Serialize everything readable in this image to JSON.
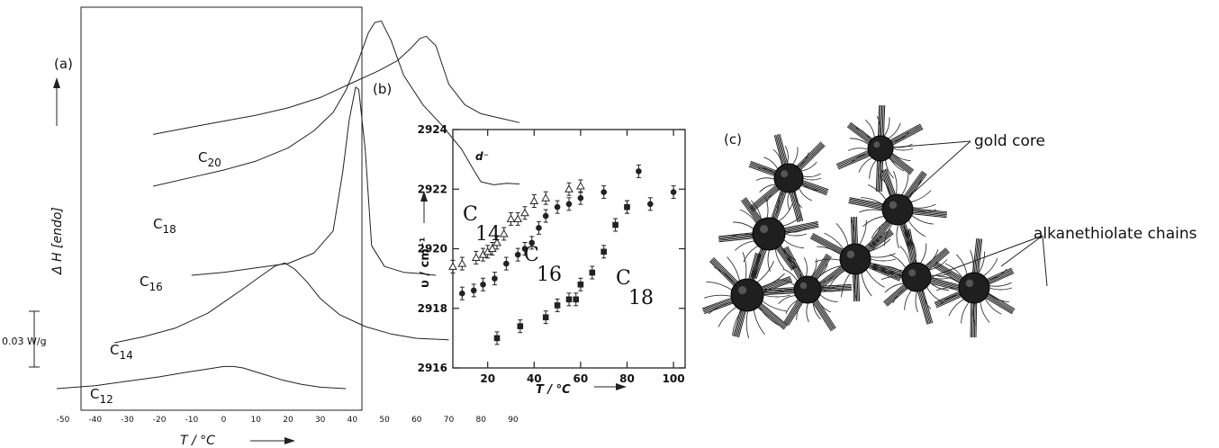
{
  "panels": {
    "a": {
      "label": "(a)"
    },
    "b": {
      "label": "(b)"
    },
    "c": {
      "label": "(c)"
    }
  },
  "chart_data": [
    {
      "type": "line",
      "panel": "(a)",
      "title": "",
      "xlabel": "T / °C",
      "ylabel": "Δ H   [endo]",
      "xlim": [
        -50,
        95
      ],
      "xticks": [
        -50,
        -40,
        -30,
        -20,
        -10,
        0,
        10,
        20,
        30,
        40,
        50,
        60,
        70,
        80,
        90
      ],
      "xtick_labels": [
        "-50",
        "-40",
        "-30",
        "-20",
        "-10",
        "0",
        "10",
        "20",
        "30",
        "40",
        "50",
        "60",
        "70",
        "80",
        "90"
      ],
      "scale_bar": {
        "label": "0.03 W/g",
        "value_w_per_g": 0.03
      },
      "grid": false,
      "series": [
        {
          "name": "C20",
          "label_main": "C",
          "label_sub": "20",
          "x": [
            -22,
            -10,
            0,
            10,
            20,
            30,
            40,
            48,
            54,
            58,
            61,
            63,
            66,
            70,
            75,
            80,
            86,
            92
          ],
          "y": [
            0.13,
            0.14,
            0.148,
            0.156,
            0.166,
            0.18,
            0.2,
            0.216,
            0.23,
            0.246,
            0.26,
            0.263,
            0.25,
            0.198,
            0.17,
            0.158,
            0.152,
            0.146
          ]
        },
        {
          "name": "C18",
          "label_main": "C",
          "label_sub": "18",
          "x": [
            -22,
            -10,
            0,
            10,
            20,
            28,
            34,
            38,
            42,
            45,
            47,
            49,
            52,
            56,
            62,
            68,
            74,
            78,
            80,
            84,
            88,
            92
          ],
          "y": [
            0.0,
            0.012,
            0.022,
            0.034,
            0.052,
            0.075,
            0.1,
            0.13,
            0.172,
            0.208,
            0.222,
            0.224,
            0.198,
            0.15,
            0.11,
            0.082,
            0.05,
            0.02,
            0.006,
            0.002,
            0.004,
            0.003
          ]
        },
        {
          "name": "C16",
          "label_main": "C",
          "label_sub": "16",
          "x": [
            -10,
            0,
            10,
            20,
            28,
            34,
            37,
            39,
            41,
            42,
            44,
            46,
            50,
            56,
            62,
            66
          ],
          "y": [
            0.0,
            0.004,
            0.01,
            0.016,
            0.03,
            0.06,
            0.14,
            0.21,
            0.255,
            0.252,
            0.17,
            0.04,
            0.012,
            0.004,
            0.002,
            0.0
          ]
        },
        {
          "name": "C14",
          "label_main": "C",
          "label_sub": "14",
          "x": [
            -34,
            -25,
            -15,
            -5,
            5,
            12,
            16,
            19,
            22,
            26,
            30,
            36,
            44,
            52,
            60,
            70
          ],
          "y": [
            0.0,
            0.008,
            0.02,
            0.04,
            0.07,
            0.092,
            0.104,
            0.108,
            0.1,
            0.082,
            0.06,
            0.038,
            0.022,
            0.012,
            0.006,
            0.004
          ]
        },
        {
          "name": "C12",
          "label_main": "C",
          "label_sub": "12",
          "x": [
            -52,
            -40,
            -30,
            -20,
            -12,
            -6,
            0,
            3,
            6,
            12,
            18,
            24,
            30,
            38
          ],
          "y": [
            0.0,
            0.004,
            0.01,
            0.016,
            0.022,
            0.026,
            0.03,
            0.03,
            0.028,
            0.02,
            0.012,
            0.006,
            0.002,
            0.0
          ]
        }
      ]
    },
    {
      "type": "scatter",
      "panel": "(b)",
      "title": "",
      "inset_label": "d⁻",
      "xlabel": "T / °C",
      "ylabel": "υ / cm⁻¹",
      "xlim": [
        5,
        105
      ],
      "ylim": [
        2916,
        2924
      ],
      "xticks": [
        20,
        40,
        60,
        80,
        100
      ],
      "yticks": [
        2916,
        2918,
        2920,
        2922,
        2924
      ],
      "grid": false,
      "series": [
        {
          "name": "C14",
          "label_main": "C",
          "label_sub": "14",
          "marker": "open-triangle",
          "points": [
            [
              5,
              2919.4
            ],
            [
              9,
              2919.5
            ],
            [
              15,
              2919.7
            ],
            [
              18,
              2919.8
            ],
            [
              20,
              2919.9
            ],
            [
              22,
              2920.0
            ],
            [
              24,
              2920.2
            ],
            [
              27,
              2920.5
            ],
            [
              30,
              2921.0
            ],
            [
              33,
              2921.0
            ],
            [
              36,
              2921.2
            ],
            [
              40,
              2921.6
            ],
            [
              45,
              2921.7
            ],
            [
              55,
              2922.0
            ],
            [
              60,
              2922.1
            ]
          ]
        },
        {
          "name": "C16",
          "label_main": "C",
          "label_sub": "16",
          "marker": "filled-circle",
          "points": [
            [
              9,
              2918.5
            ],
            [
              14,
              2918.6
            ],
            [
              18,
              2918.8
            ],
            [
              23,
              2919.0
            ],
            [
              28,
              2919.5
            ],
            [
              33,
              2919.8
            ],
            [
              36,
              2920.0
            ],
            [
              39,
              2920.2
            ],
            [
              42,
              2920.7
            ],
            [
              45,
              2921.1
            ],
            [
              50,
              2921.4
            ],
            [
              55,
              2921.5
            ],
            [
              60,
              2921.7
            ],
            [
              70,
              2921.9
            ],
            [
              80,
              2921.4
            ],
            [
              85,
              2922.6
            ],
            [
              90,
              2921.5
            ],
            [
              100,
              2921.9
            ]
          ]
        },
        {
          "name": "C18",
          "label_main": "C",
          "label_sub": "18",
          "marker": "filled-square",
          "points": [
            [
              24,
              2917.0
            ],
            [
              34,
              2917.4
            ],
            [
              45,
              2917.7
            ],
            [
              50,
              2918.1
            ],
            [
              55,
              2918.3
            ],
            [
              58,
              2918.3
            ],
            [
              60,
              2918.8
            ],
            [
              65,
              2919.2
            ],
            [
              70,
              2919.9
            ],
            [
              75,
              2920.8
            ],
            [
              80,
              2921.4
            ]
          ]
        }
      ]
    }
  ],
  "diagram": {
    "annotations": [
      {
        "text": "gold core"
      },
      {
        "text": "alkanethiolate chains"
      }
    ]
  }
}
